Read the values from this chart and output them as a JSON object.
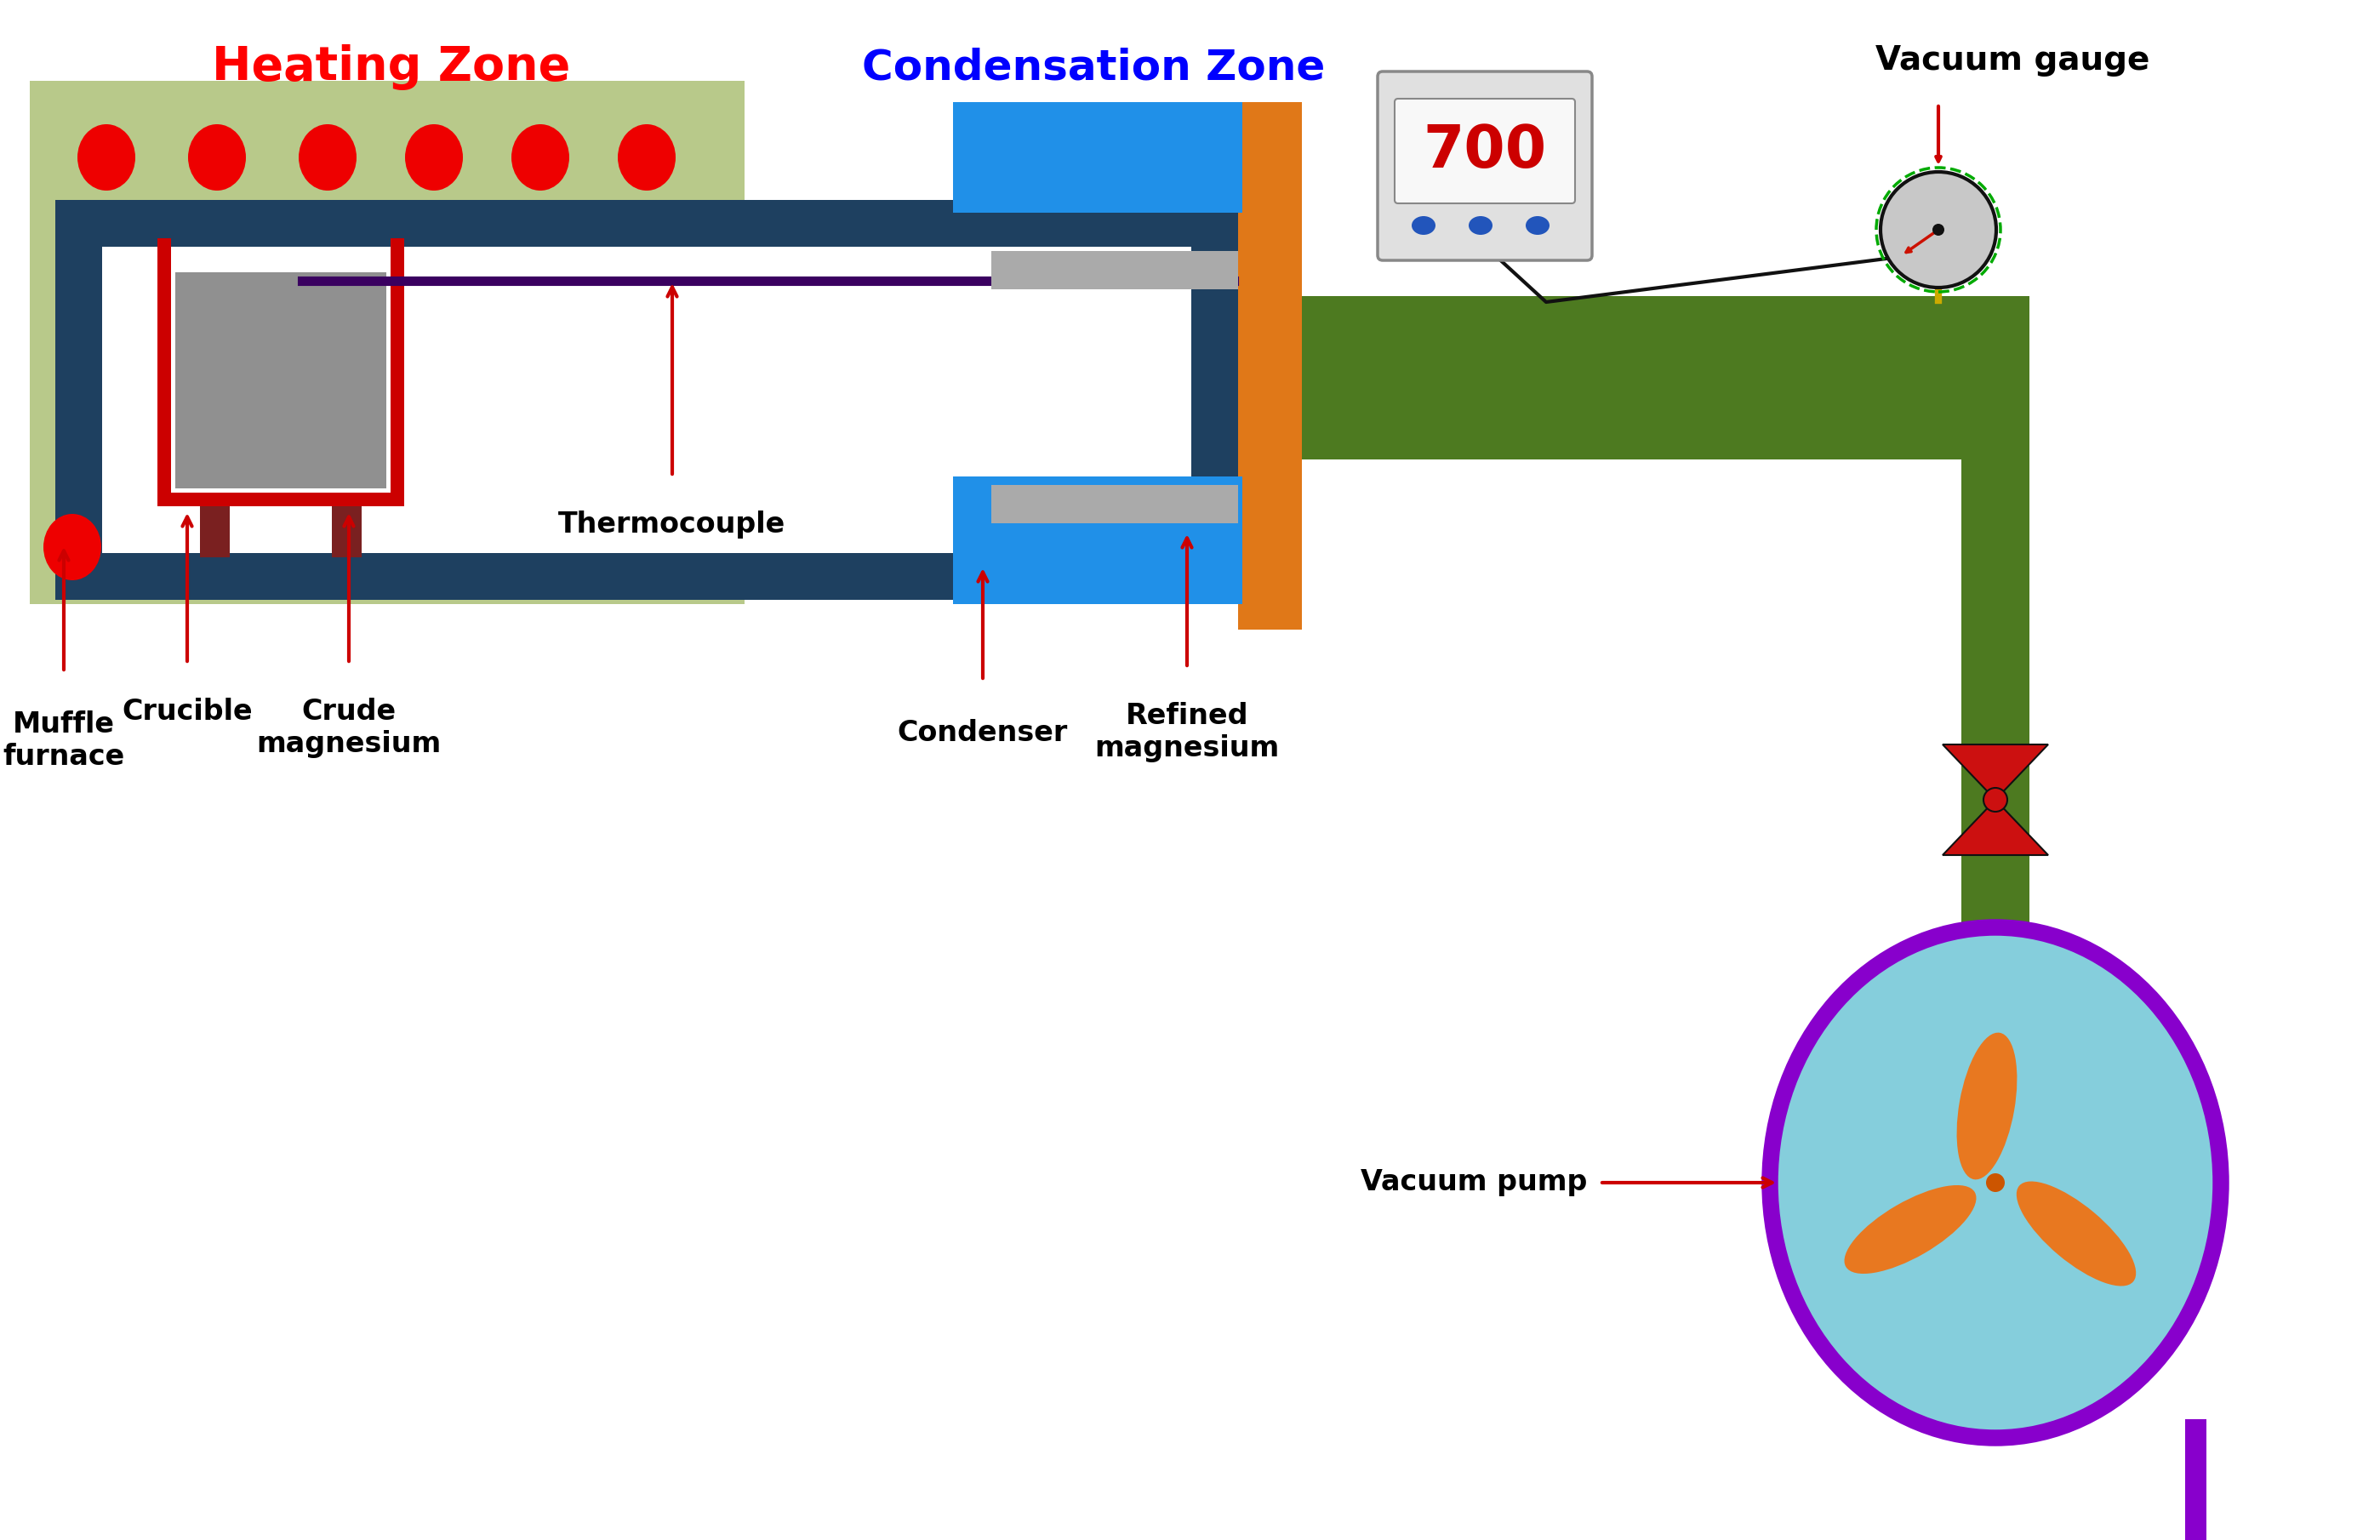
{
  "bg_color": "#ffffff",
  "heating_zone_color": "#b8c98a",
  "tube_outer_color": "#1e4060",
  "crucible_body_color": "#909090",
  "crucible_frame_color": "#cc0000",
  "crucible_legs_color": "#7a2020",
  "condenser_blue_color": "#2090e8",
  "condenser_gray_color": "#aaaaaa",
  "orange_wall_color": "#e07818",
  "green_pipe_color": "#4d7a20",
  "red_valve_color": "#cc1010",
  "pump_circle_color": "#85cedc",
  "pump_border_color": "#8800cc",
  "pump_blade_color": "#e87820",
  "vacuum_gauge_bg": "#e0e0e0",
  "vacuum_gauge_border": "#888888",
  "vacuum_gauge_display_bg": "#f8f8f8",
  "vacuum_gauge_text_color": "#cc0000",
  "heating_dots_color": "#ee0000",
  "thermocouple_color": "#3a0060",
  "arrow_color": "#cc0000",
  "yellow_wire_color": "#ccaa00",
  "black_wire_color": "#111111",
  "dial_bg": "#c8c8c8",
  "dial_border": "#111111",
  "dial_dot_color": "#1a1a1a",
  "heating_zone_label": "Heating Zone",
  "condensation_zone_label": "Condensation Zone",
  "vacuum_gauge_label": "Vacuum gauge",
  "vacuum_pump_label": "Vacuum pump",
  "muffle_furnace_label": "Muffle\nfurnace",
  "crucible_label": "Crucible",
  "crude_mg_label": "Crude\nmagnesium",
  "thermocouple_label": "Thermocouple",
  "condenser_label": "Condenser",
  "refined_mg_label": "Refined\nmagnesium",
  "gauge_value": "700"
}
